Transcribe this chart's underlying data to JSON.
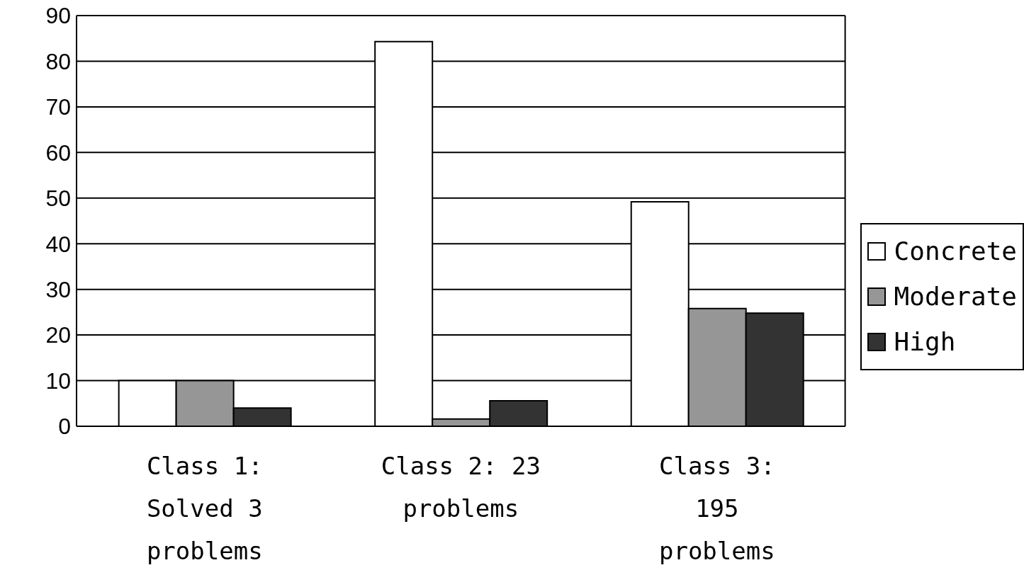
{
  "chart_data": {
    "type": "bar",
    "categories": [
      "Class 1: Solved 3 problems",
      "Class 2: 23 problems",
      "Class 3: 195 problems"
    ],
    "series": [
      {
        "name": "Concrete",
        "color": "#ffffff",
        "values": [
          10,
          84.3,
          49.2
        ]
      },
      {
        "name": "Moderate",
        "color": "#969696",
        "values": [
          10,
          1.6,
          25.8
        ]
      },
      {
        "name": "High",
        "color": "#333333",
        "values": [
          4,
          5.6,
          24.8
        ]
      }
    ],
    "ylim": [
      0,
      90
    ],
    "yticks": [
      0,
      10,
      20,
      30,
      40,
      50,
      60,
      70,
      80,
      90
    ],
    "grid": "y",
    "legend": "right"
  }
}
